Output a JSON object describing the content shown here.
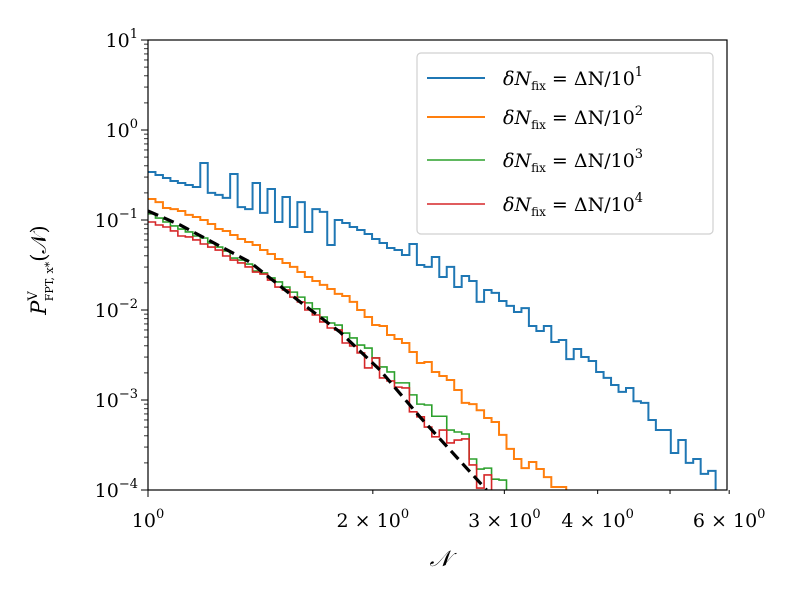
{
  "chart_data": {
    "type": "line",
    "style": "step",
    "xscale": "log",
    "yscale": "log",
    "xlim": [
      1,
      5.96
    ],
    "ylim": [
      0.0001,
      10
    ],
    "grid": false,
    "xlabel": "𝒩",
    "ylabel": {
      "base": "P",
      "sup": "V",
      "sub": "FPT, x*",
      "arg": "(𝒩)"
    },
    "x_ticks": [
      {
        "value": 1,
        "label": "10",
        "exp": "0",
        "major": true
      },
      {
        "value": 2,
        "label": "2 × 10",
        "exp": "0",
        "major": false
      },
      {
        "value": 3,
        "label": "3 × 10",
        "exp": "0",
        "major": false
      },
      {
        "value": 4,
        "label": "4 × 10",
        "exp": "0",
        "major": false
      },
      {
        "value": 5,
        "label": "",
        "exp": "",
        "major": false
      },
      {
        "value": 6,
        "label": "6 × 10",
        "exp": "0",
        "major": false
      }
    ],
    "y_ticks": [
      {
        "value": 10,
        "label": "10",
        "exp": "1"
      },
      {
        "value": 1,
        "label": "10",
        "exp": "0"
      },
      {
        "value": 0.1,
        "label": "10",
        "exp": "−1"
      },
      {
        "value": 0.01,
        "label": "10",
        "exp": "−2"
      },
      {
        "value": 0.001,
        "label": "10",
        "exp": "−3"
      },
      {
        "value": 0.0001,
        "label": "10",
        "exp": "−4"
      }
    ],
    "legend_position": "top-right",
    "series": [
      {
        "name": {
          "lhs": "δN",
          "sub": "fix",
          "rhs": " = ΔN/10",
          "exp": "1"
        },
        "color": "#1f77b4",
        "x_start": 1,
        "log10_bin_width": 0.01,
        "values": [
          0.341,
          0.316,
          0.293,
          0.271,
          0.258,
          0.245,
          0.233,
          0.43,
          0.2,
          0.19,
          0.176,
          0.324,
          0.139,
          0.132,
          0.258,
          0.12,
          0.221,
          0.095,
          0.18,
          0.0836,
          0.158,
          0.0736,
          0.132,
          0.123,
          0.0528,
          0.1,
          0.0926,
          0.0836,
          0.0774,
          0.0699,
          0.0615,
          0.0555,
          0.0489,
          0.0464,
          0.0408,
          0.0541,
          0.0316,
          0.0301,
          0.0388,
          0.0233,
          0.0301,
          0.018,
          0.0239,
          0.021,
          0.0123,
          0.0167,
          0.0155,
          0.0126,
          0.0111,
          0.0095,
          0.0105,
          0.00664,
          0.00585,
          0.00664,
          0.00441,
          0.00464,
          0.00285,
          0.00369,
          0.003,
          0.00271,
          0.00205,
          0.00176,
          0.00147,
          0.00123,
          0.00136,
          0.00097,
          0.00093,
          0.0006,
          0.000464,
          0.000464,
          0.000258,
          0.000359,
          0.0002,
          0.000221,
          0.000151,
          0.000163
        ]
      },
      {
        "name": {
          "lhs": "δN",
          "sub": "fix",
          "rhs": " = ΔN/10",
          "exp": "2"
        },
        "color": "#ff7f0e",
        "x_start": 1,
        "log10_bin_width": 0.01,
        "values": [
          0.171,
          0.158,
          0.136,
          0.132,
          0.126,
          0.114,
          0.108,
          0.1,
          0.0903,
          0.0794,
          0.0755,
          0.0681,
          0.0615,
          0.057,
          0.0528,
          0.0464,
          0.0419,
          0.0369,
          0.0333,
          0.0301,
          0.0264,
          0.0233,
          0.021,
          0.019,
          0.0171,
          0.0151,
          0.0143,
          0.0123,
          0.01,
          0.00836,
          0.00681,
          0.00664,
          0.00528,
          0.00476,
          0.0043,
          0.00341,
          0.00258,
          0.00264,
          0.00205,
          0.00185,
          0.00167,
          0.00129,
          0.00093,
          0.0009,
          0.00077,
          0.00063,
          0.00057,
          0.00041,
          0.000286,
          0.000221,
          0.000175,
          0.000205,
          0.000171,
          0.000139,
          0.000108,
          0.000108
        ]
      },
      {
        "name": {
          "lhs": "δN",
          "sub": "fix",
          "rhs": " = ΔN/10",
          "exp": "3"
        },
        "color": "#2ca02c",
        "x_start": 1,
        "log10_bin_width": 0.01,
        "values": [
          0.117,
          0.105,
          0.095,
          0.0858,
          0.0794,
          0.0736,
          0.0664,
          0.0631,
          0.0555,
          0.0501,
          0.0453,
          0.0378,
          0.0359,
          0.0324,
          0.0271,
          0.0258,
          0.0227,
          0.0205,
          0.018,
          0.0158,
          0.0139,
          0.012,
          0.0103,
          0.00836,
          0.00717,
          0.00681,
          0.00555,
          0.00489,
          0.00408,
          0.00378,
          0.00293,
          0.00233,
          0.00205,
          0.00155,
          0.00155,
          0.00114,
          0.0009,
          0.00088,
          0.00066,
          0.00066,
          0.000464,
          0.000441,
          0.000419,
          0.000221,
          0.000171,
          0.000175,
          0.000132,
          0.000129
        ]
      },
      {
        "name": {
          "lhs": "δN",
          "sub": "fix",
          "rhs": " = ΔN/10",
          "exp": "4"
        },
        "color": "#d62728",
        "x_start": 1,
        "log10_bin_width": 0.01,
        "values": [
          0.095,
          0.088,
          0.0836,
          0.0755,
          0.0664,
          0.0648,
          0.06,
          0.0541,
          0.0501,
          0.0464,
          0.0398,
          0.0359,
          0.0333,
          0.0301,
          0.0264,
          0.0251,
          0.0215,
          0.018,
          0.0167,
          0.0139,
          0.0123,
          0.01,
          0.0088,
          0.00736,
          0.00631,
          0.006,
          0.0043,
          0.00398,
          0.00333,
          0.00227,
          0.00293,
          0.00176,
          0.00163,
          0.00139,
          0.00136,
          0.00074,
          0.00065,
          0.0005,
          0.00039,
          0.000464,
          0.000333,
          0.000359,
          0.000369,
          0.00019,
          0.000105,
          0.000147
        ]
      }
    ],
    "reference_curve": {
      "style": "dashed",
      "color": "#000000",
      "x": [
        1.0,
        1.104,
        1.369,
        1.598,
        1.807,
        2.045,
        2.312,
        2.84
      ],
      "y": [
        0.126,
        0.088,
        0.0341,
        0.0123,
        0.0057,
        0.00215,
        0.00065,
        0.0001
      ]
    }
  }
}
